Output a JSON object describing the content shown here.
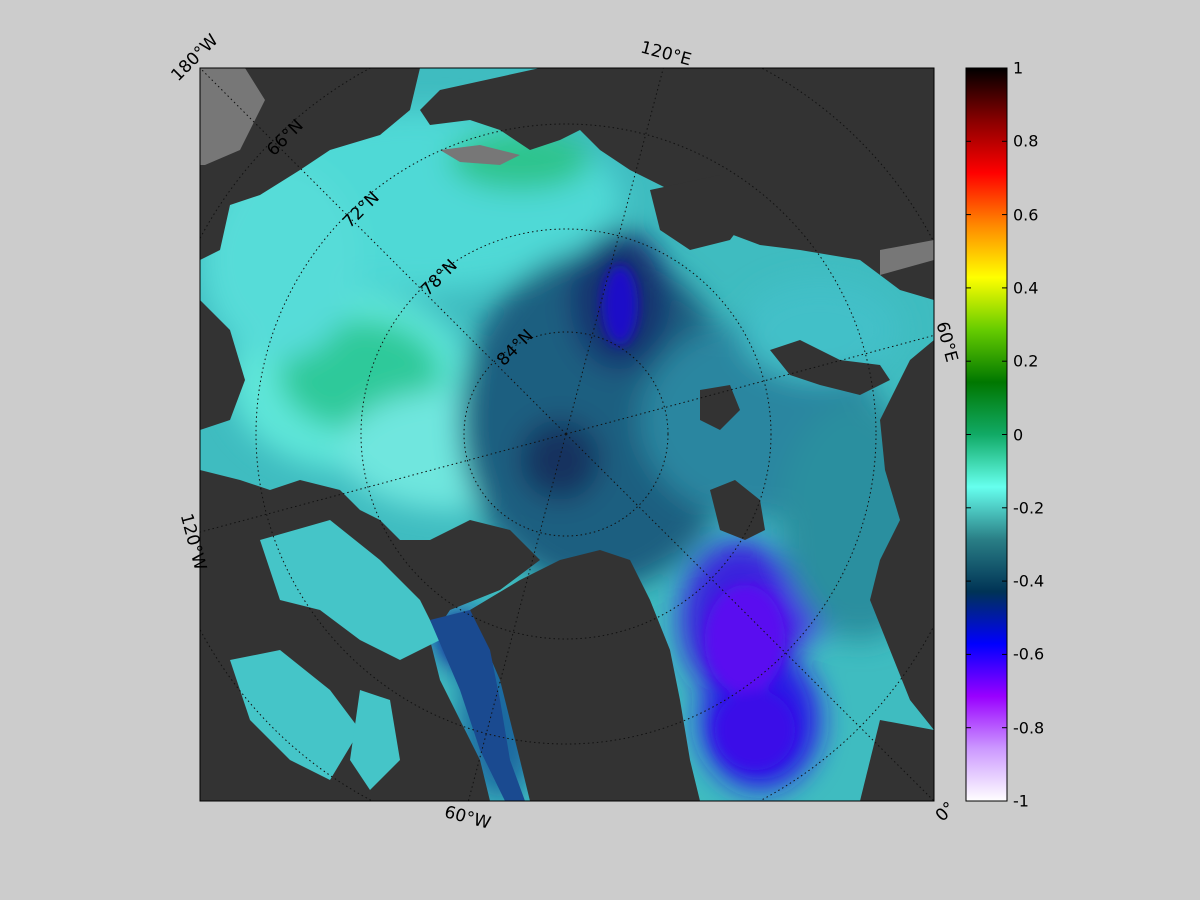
{
  "map": {
    "longitude_labels": {
      "lon_180w": "180°W",
      "lon_120e": "120°E",
      "lon_60e": "60°E",
      "lon_0": "0°",
      "lon_60w": "60°W",
      "lon_120w": "120°W"
    },
    "latitude_labels": {
      "lat_66n": "66°N",
      "lat_72n": "72°N",
      "lat_78n": "78°N",
      "lat_84n": "84°N"
    }
  },
  "colorbar": {
    "range": [
      -1,
      1
    ],
    "ticks": [
      "1",
      "0.8",
      "0.6",
      "0.4",
      "0.2",
      "0",
      "-0.2",
      "-0.4",
      "-0.6",
      "-0.8",
      "-1"
    ],
    "colors": [
      "#ffffff",
      "#cc99ff",
      "#9900ff",
      "#0000ff",
      "#003355",
      "#2a7f86",
      "#66ffee",
      "#11aa66",
      "#007700",
      "#66cc00",
      "#ffff00",
      "#ff8800",
      "#ff0000",
      "#880000",
      "#000000"
    ]
  },
  "palette": {
    "background": "#cccccc",
    "land": "#333333",
    "land_shelf": "#777777",
    "graticule": "#111111"
  }
}
